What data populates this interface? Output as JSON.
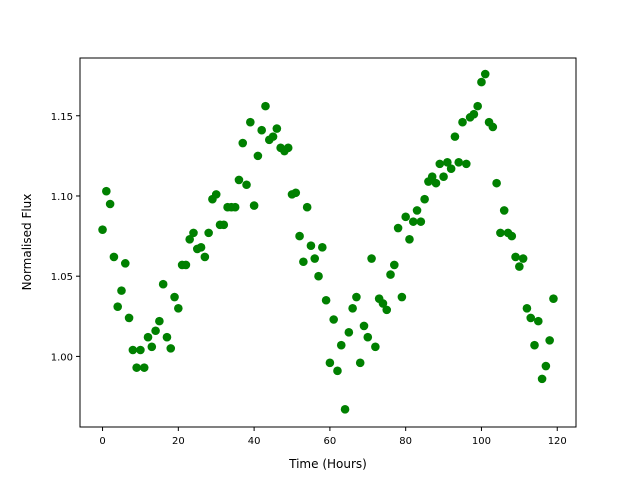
{
  "chart_data": {
    "type": "scatter",
    "title": "",
    "xlabel": "Time (Hours)",
    "ylabel": "Normalised Flux",
    "xlim": [
      -5.95,
      124.95
    ],
    "ylim": [
      0.956,
      1.186
    ],
    "xticks": [
      0,
      20,
      40,
      60,
      80,
      100,
      120
    ],
    "xtick_labels": [
      "0",
      "20",
      "40",
      "60",
      "80",
      "100",
      "120"
    ],
    "yticks": [
      1.0,
      1.05,
      1.1,
      1.15
    ],
    "ytick_labels": [
      "1.00",
      "1.05",
      "1.10",
      "1.15"
    ],
    "grid": false,
    "marker_color": "#008000",
    "series": [
      {
        "x": [
          0,
          1,
          2,
          3,
          4,
          5,
          6,
          7,
          8,
          9,
          10,
          11,
          12,
          13,
          14,
          15,
          16,
          17,
          18,
          19,
          20,
          21,
          22,
          23,
          24,
          25,
          26,
          27,
          28,
          29,
          30,
          31,
          32,
          33,
          34,
          35,
          36,
          37,
          38,
          39,
          40,
          41,
          42,
          43,
          44,
          45,
          46,
          47,
          48,
          49,
          50,
          51,
          52,
          53,
          54,
          55,
          56,
          57,
          58,
          59,
          60,
          61,
          62,
          63,
          64,
          65,
          66,
          67,
          68,
          69,
          70,
          71,
          72,
          73,
          74,
          75,
          76,
          77,
          78,
          79,
          80,
          81,
          82,
          83,
          84,
          85,
          86,
          87,
          88,
          89,
          90,
          91,
          92,
          93,
          94,
          95,
          96,
          97,
          98,
          99,
          100,
          101,
          102,
          103,
          104,
          105,
          106,
          107,
          108,
          109,
          110,
          111,
          112,
          113,
          114,
          115,
          116,
          117,
          118,
          119
        ],
        "y": [
          1.079,
          1.103,
          1.095,
          1.062,
          1.031,
          1.041,
          1.058,
          1.024,
          1.004,
          0.993,
          1.004,
          0.993,
          1.012,
          1.006,
          1.016,
          1.022,
          1.045,
          1.012,
          1.005,
          1.037,
          1.03,
          1.057,
          1.057,
          1.073,
          1.077,
          1.067,
          1.068,
          1.062,
          1.077,
          1.098,
          1.101,
          1.082,
          1.082,
          1.093,
          1.093,
          1.093,
          1.11,
          1.133,
          1.107,
          1.146,
          1.094,
          1.125,
          1.141,
          1.156,
          1.135,
          1.137,
          1.142,
          1.13,
          1.128,
          1.13,
          1.101,
          1.102,
          1.075,
          1.059,
          1.093,
          1.069,
          1.061,
          1.05,
          1.068,
          1.035,
          0.996,
          1.023,
          0.991,
          1.007,
          0.967,
          1.015,
          1.03,
          1.037,
          0.996,
          1.019,
          1.012,
          1.061,
          1.006,
          1.036,
          1.033,
          1.029,
          1.051,
          1.057,
          1.08,
          1.037,
          1.087,
          1.073,
          1.084,
          1.091,
          1.084,
          1.098,
          1.109,
          1.112,
          1.108,
          1.12,
          1.112,
          1.121,
          1.117,
          1.137,
          1.121,
          1.146,
          1.12,
          1.149,
          1.151,
          1.156,
          1.171,
          1.176,
          1.146,
          1.143,
          1.108,
          1.077,
          1.091,
          1.077,
          1.075,
          1.062,
          1.056,
          1.061,
          1.03,
          1.024,
          1.007,
          1.022,
          0.986,
          0.994,
          1.01,
          1.036
        ]
      }
    ]
  }
}
